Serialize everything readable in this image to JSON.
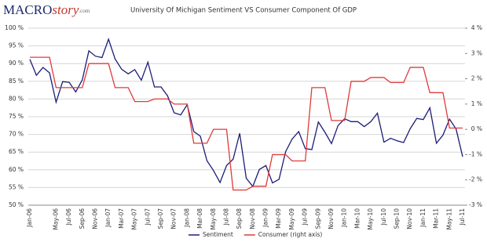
{
  "logo": {
    "main": "MACRO",
    "accent": "story",
    "suffix": ".com"
  },
  "chart_data": {
    "type": "line",
    "title": "University Of Michigan Sentiment VS Consumer Component Of GDP",
    "categories": [
      "Jan-06",
      null,
      null,
      null,
      "May-06",
      null,
      "Jul-06",
      null,
      "Sep-06",
      null,
      "Nov-06",
      null,
      "Jan-07",
      null,
      "Mar-07",
      null,
      "May-07",
      null,
      "Jul-07",
      null,
      "Sep-07",
      null,
      "Nov-07",
      null,
      "Jan-08",
      null,
      "Mar-08",
      null,
      "May-08",
      null,
      "Jul-08",
      null,
      "Sep-08",
      null,
      "Nov-08",
      null,
      "Jan-09",
      null,
      "Mar-09",
      null,
      "May-09",
      null,
      "Jul-09",
      null,
      "Sep-09",
      null,
      "Nov-09",
      null,
      "Jan-10",
      null,
      "Mar-10",
      null,
      "May-10",
      null,
      "Jul-10",
      null,
      "Sep-10",
      null,
      "Nov-10",
      null,
      "Jan-11",
      null,
      "Mar-11",
      null,
      "May-11",
      null,
      "Jul-11"
    ],
    "series": [
      {
        "name": "Sentiment",
        "color": "#1c1c78",
        "axis": "y",
        "values": [
          91.2,
          86.7,
          88.9,
          87.4,
          79.1,
          84.9,
          84.7,
          82.0,
          85.4,
          93.6,
          92.1,
          91.7,
          96.9,
          91.3,
          88.4,
          87.1,
          88.3,
          85.3,
          90.4,
          83.4,
          83.4,
          80.9,
          76.1,
          75.5,
          78.4,
          70.8,
          69.5,
          62.6,
          59.8,
          56.4,
          61.2,
          63.0,
          70.3,
          57.6,
          55.3,
          60.1,
          61.2,
          56.3,
          57.3,
          65.1,
          68.7,
          70.8,
          66.0,
          65.7,
          73.5,
          70.6,
          67.4,
          72.5,
          74.4,
          73.6,
          73.6,
          72.2,
          73.6,
          76.0,
          67.8,
          68.9,
          68.2,
          67.7,
          71.6,
          74.5,
          74.2,
          77.5,
          67.5,
          69.8,
          74.3,
          71.5,
          63.7
        ]
      },
      {
        "name": "Consumer (right axis)",
        "color": "#e03a3a",
        "axis": "y2",
        "values": [
          2.85,
          2.85,
          2.85,
          2.85,
          1.65,
          1.65,
          1.65,
          1.65,
          1.65,
          2.6,
          2.6,
          2.6,
          2.6,
          1.65,
          1.65,
          1.65,
          1.1,
          1.1,
          1.1,
          1.2,
          1.2,
          1.2,
          1.0,
          1.0,
          1.0,
          -0.55,
          -0.55,
          -0.55,
          0,
          0,
          0,
          -2.4,
          -2.4,
          -2.4,
          -2.25,
          -2.25,
          -2.25,
          -1.0,
          -1.0,
          -1.0,
          -1.25,
          -1.25,
          -1.25,
          1.65,
          1.65,
          1.65,
          0.35,
          0.35,
          0.35,
          1.9,
          1.9,
          1.9,
          2.05,
          2.05,
          2.05,
          1.85,
          1.85,
          1.85,
          2.45,
          2.45,
          2.45,
          1.45,
          1.45,
          1.45,
          0.05,
          0.05,
          0.05
        ]
      }
    ],
    "ylim": [
      50,
      100
    ],
    "yticks": [
      {
        "value": 50,
        "label": "50 %"
      },
      {
        "value": 55,
        "label": "55 %"
      },
      {
        "value": 60,
        "label": "60 %"
      },
      {
        "value": 65,
        "label": "65 %"
      },
      {
        "value": 70,
        "label": "70 %"
      },
      {
        "value": 75,
        "label": "75 %"
      },
      {
        "value": 80,
        "label": "80 %"
      },
      {
        "value": 85,
        "label": "85 %"
      },
      {
        "value": 90,
        "label": "90 %"
      },
      {
        "value": 95,
        "label": "95 %"
      },
      {
        "value": 100,
        "label": "100 %"
      }
    ],
    "y2lim": [
      -3,
      4
    ],
    "y2ticks": [
      {
        "value": -3,
        "label": "-3 %"
      },
      {
        "value": -2,
        "label": "-2 %"
      },
      {
        "value": -1,
        "label": "-1 %"
      },
      {
        "value": 0,
        "label": "0 %"
      },
      {
        "value": 1,
        "label": "1 %"
      },
      {
        "value": 2,
        "label": "2 %"
      },
      {
        "value": 3,
        "label": "3 %"
      },
      {
        "value": 4,
        "label": "4 %"
      }
    ],
    "grid": true,
    "legend": "bottom"
  }
}
